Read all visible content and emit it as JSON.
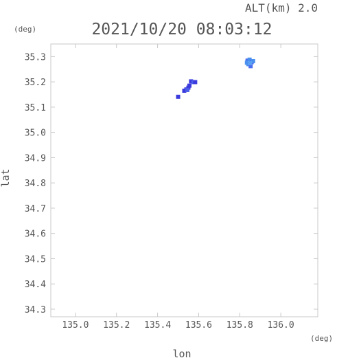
{
  "chart_data": {
    "type": "scatter",
    "title": "2021/10/20 08:03:12",
    "altitude_label": "ALT(km) 2.0",
    "xlabel": "lon",
    "ylabel": "lat",
    "x_unit": "(deg)",
    "y_unit": "(deg)",
    "xlim": [
      134.88,
      136.18
    ],
    "ylim": [
      34.27,
      35.35
    ],
    "x_ticks": [
      "135.0",
      "135.2",
      "135.4",
      "135.6",
      "135.8",
      "136.0"
    ],
    "x_tick_values": [
      135.0,
      135.2,
      135.4,
      135.6,
      135.8,
      136.0
    ],
    "y_ticks": [
      "35.3",
      "35.2",
      "35.1",
      "35.0",
      "34.9",
      "34.8",
      "34.7",
      "34.6",
      "34.5",
      "34.4",
      "34.3"
    ],
    "y_tick_values": [
      35.3,
      35.2,
      35.1,
      35.0,
      34.9,
      34.8,
      34.7,
      34.6,
      34.5,
      34.4,
      34.3
    ],
    "grid": false,
    "colors": {
      "frame": "#c8c8c8",
      "text": "#555555",
      "echo_dark": "#3b3bdd",
      "echo_mid": "#4a6cf0",
      "echo_light": "#4a90ee"
    },
    "echoes": [
      {
        "x": 135.5,
        "y": 35.141,
        "color": "#3b3bdd"
      },
      {
        "x": 135.53,
        "y": 35.165,
        "color": "#3b3bdd"
      },
      {
        "x": 135.54,
        "y": 35.17,
        "color": "#3b3bdd"
      },
      {
        "x": 135.55,
        "y": 35.177,
        "color": "#3b3bdd"
      },
      {
        "x": 135.545,
        "y": 35.168,
        "color": "#4a5de8"
      },
      {
        "x": 135.555,
        "y": 35.185,
        "color": "#3b3bdd"
      },
      {
        "x": 135.563,
        "y": 35.202,
        "color": "#3b3bdd"
      },
      {
        "x": 135.575,
        "y": 35.199,
        "color": "#4a5de8"
      },
      {
        "x": 135.583,
        "y": 35.199,
        "color": "#3b3bdd"
      },
      {
        "x": 135.838,
        "y": 35.284,
        "color": "#4a6cf0"
      },
      {
        "x": 135.848,
        "y": 35.288,
        "color": "#4a90ee"
      },
      {
        "x": 135.858,
        "y": 35.278,
        "color": "#4a6cf0"
      },
      {
        "x": 135.842,
        "y": 35.27,
        "color": "#4a90ee"
      },
      {
        "x": 135.853,
        "y": 35.262,
        "color": "#4a6cf0"
      },
      {
        "x": 135.865,
        "y": 35.282,
        "color": "#4a90ee"
      },
      {
        "x": 135.835,
        "y": 35.276,
        "color": "#4a90ee"
      },
      {
        "x": 135.85,
        "y": 35.274,
        "color": "#5aa0f2"
      }
    ]
  }
}
